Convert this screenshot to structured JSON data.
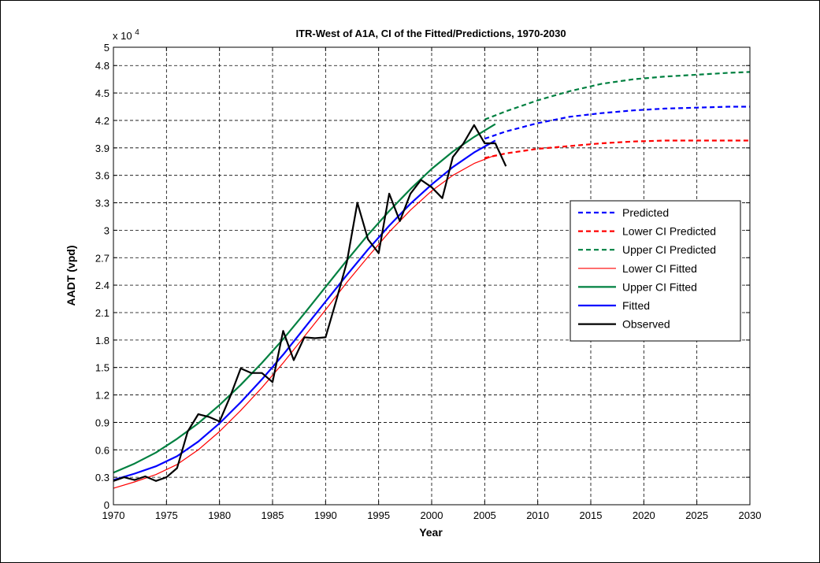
{
  "chart_data": {
    "type": "line",
    "title": "ITR-West of A1A, CI of the Fitted/Predictions, 1970-2030",
    "xlabel": "Year",
    "ylabel": "AADT (vpd)",
    "y_exponent_label": "x 10",
    "y_exponent_power": "4",
    "xlim": [
      1970,
      2030
    ],
    "ylim": [
      0,
      50000
    ],
    "grid": true,
    "x_ticks": [
      1970,
      1975,
      1980,
      1985,
      1990,
      1995,
      2000,
      2005,
      2010,
      2015,
      2020,
      2025,
      2030
    ],
    "x_tick_labels": [
      "1970",
      "1975",
      "1980",
      "1985",
      "1990",
      "1995",
      "2000",
      "2005",
      "2010",
      "2015",
      "2020",
      "2025",
      "2030"
    ],
    "y_ticks": [
      0,
      3000,
      6000,
      9000,
      12000,
      15000,
      18000,
      21000,
      24000,
      27000,
      30000,
      33000,
      36000,
      39000,
      42000,
      45000,
      48000,
      50000
    ],
    "y_tick_labels": [
      "0",
      "0.3",
      "0.6",
      "0.9",
      "1.2",
      "1.5",
      "1.8",
      "2.1",
      "2.4",
      "2.7",
      "3",
      "3.3",
      "3.6",
      "3.9",
      "4.2",
      "4.5",
      "4.8",
      "5"
    ],
    "legend_position": "right",
    "series": [
      {
        "name": "Predicted",
        "color": "#0000ff",
        "style": "dashed",
        "x": [
          2005,
          2007,
          2010,
          2013,
          2016,
          2019,
          2022,
          2025,
          2028,
          2030
        ],
        "y": [
          40000,
          40800,
          41700,
          42400,
          42800,
          43100,
          43300,
          43400,
          43500,
          43500
        ]
      },
      {
        "name": "Lower CI Predicted",
        "color": "#ff0000",
        "style": "dashed",
        "x": [
          2005,
          2007,
          2010,
          2013,
          2016,
          2019,
          2022,
          2025,
          2028,
          2030
        ],
        "y": [
          37900,
          38400,
          38900,
          39200,
          39500,
          39700,
          39800,
          39800,
          39800,
          39800
        ]
      },
      {
        "name": "Upper CI Predicted",
        "color": "#008040",
        "style": "dashed",
        "x": [
          2005,
          2007,
          2010,
          2013,
          2016,
          2019,
          2022,
          2025,
          2028,
          2030
        ],
        "y": [
          42100,
          43000,
          44200,
          45200,
          46000,
          46500,
          46800,
          47000,
          47200,
          47300
        ]
      },
      {
        "name": "Lower CI Fitted",
        "color": "#ff0000",
        "style": "solid-thin",
        "x": [
          1970,
          1972,
          1974,
          1976,
          1978,
          1980,
          1982,
          1984,
          1986,
          1988,
          1990,
          1992,
          1994,
          1996,
          1998,
          2000,
          2002,
          2004,
          2006
        ],
        "y": [
          1800,
          2500,
          3300,
          4400,
          6000,
          8000,
          10300,
          12800,
          15500,
          18400,
          21300,
          24300,
          27100,
          29800,
          32200,
          34300,
          36000,
          37300,
          38200
        ]
      },
      {
        "name": "Upper CI Fitted",
        "color": "#008040",
        "style": "solid",
        "x": [
          1970,
          1972,
          1974,
          1976,
          1978,
          1980,
          1982,
          1984,
          1986,
          1988,
          1990,
          1992,
          1994,
          1996,
          1998,
          2000,
          2002,
          2004,
          2006
        ],
        "y": [
          3500,
          4500,
          5700,
          7200,
          8900,
          10900,
          13100,
          15500,
          18100,
          20900,
          23800,
          26700,
          29500,
          32100,
          34500,
          36700,
          38600,
          40200,
          41600
        ]
      },
      {
        "name": "Fitted",
        "color": "#0000ff",
        "style": "solid",
        "x": [
          1970,
          1972,
          1974,
          1976,
          1978,
          1980,
          1982,
          1984,
          1986,
          1988,
          1990,
          1992,
          1994,
          1996,
          1998,
          2000,
          2002,
          2004,
          2006
        ],
        "y": [
          2700,
          3400,
          4200,
          5300,
          6900,
          8900,
          11200,
          13700,
          16400,
          19300,
          22200,
          25100,
          27900,
          30500,
          32900,
          35000,
          36900,
          38500,
          39800
        ]
      },
      {
        "name": "Observed",
        "color": "#000000",
        "style": "solid",
        "x": [
          1970,
          1971,
          1972,
          1973,
          1974,
          1975,
          1976,
          1977,
          1978,
          1979,
          1980,
          1981,
          1982,
          1983,
          1984,
          1985,
          1986,
          1987,
          1988,
          1989,
          1990,
          1991,
          1992,
          1993,
          1994,
          1995,
          1996,
          1997,
          1998,
          1999,
          2000,
          2001,
          2002,
          2003,
          2004,
          2005,
          2006,
          2007
        ],
        "y": [
          2600,
          3000,
          2700,
          3100,
          2600,
          3000,
          4000,
          8000,
          9900,
          9600,
          9100,
          11800,
          14900,
          14400,
          14400,
          13400,
          19000,
          15800,
          18300,
          18200,
          18300,
          22300,
          26500,
          33000,
          29000,
          27500,
          34000,
          31000,
          34000,
          35500,
          34700,
          33500,
          38000,
          39500,
          41500,
          39500,
          39500,
          37000
        ]
      }
    ]
  }
}
